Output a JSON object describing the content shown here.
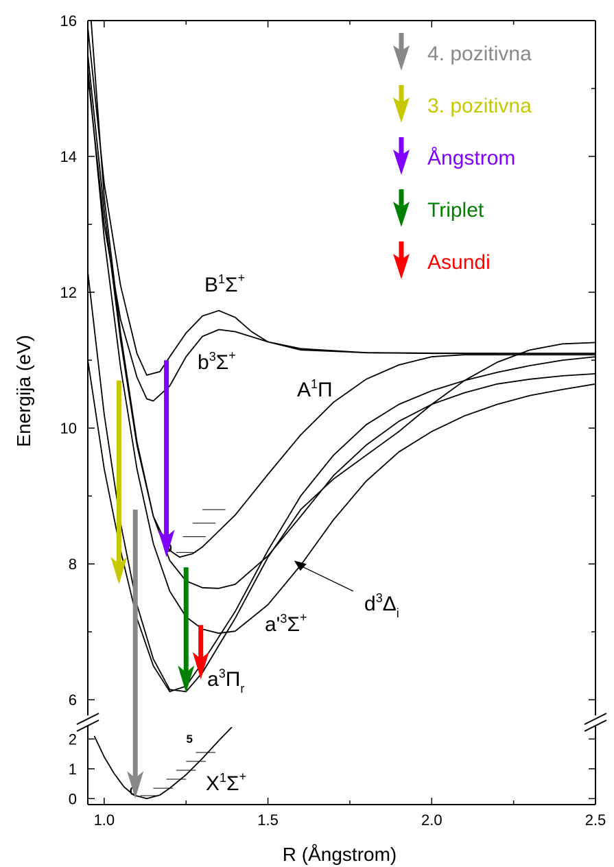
{
  "chart_data": {
    "type": "line",
    "title": "",
    "xlabel": "R (Ångstrom)",
    "ylabel": "Energija (eV)",
    "xlim": [
      0.95,
      2.5
    ],
    "ylim_upper_panel": [
      5.8,
      16
    ],
    "ylim_lower_panel": [
      -0.2,
      2.4
    ],
    "axis_break": true,
    "x_ticks": [
      "1.0",
      "1.5",
      "2.0",
      "2.5"
    ],
    "y_ticks_upper": [
      "6",
      "8",
      "10",
      "12",
      "14",
      "16"
    ],
    "y_ticks_lower": [
      "0",
      "1",
      "2"
    ],
    "grid": false,
    "legend_position": "top-right",
    "legend": [
      {
        "label": "4. pozitivna",
        "color": "#888888"
      },
      {
        "label": "3. pozitivna",
        "color": "#c8c800"
      },
      {
        "label": "Ångstrom",
        "color": "#8000ff"
      },
      {
        "label": "Triplet",
        "color": "#008000"
      },
      {
        "label": "Asundi",
        "color": "#ff0000"
      }
    ],
    "states": [
      {
        "label": "B",
        "sup": "1",
        "sym": "Σ",
        "sup2": "+",
        "sub": "",
        "points": [
          [
            0.95,
            15.9
          ],
          [
            1.0,
            13.6
          ],
          [
            1.05,
            12.1
          ],
          [
            1.1,
            11.1
          ],
          [
            1.13,
            10.78
          ],
          [
            1.17,
            10.83
          ],
          [
            1.2,
            11.05
          ],
          [
            1.25,
            11.4
          ],
          [
            1.3,
            11.65
          ],
          [
            1.35,
            11.73
          ],
          [
            1.4,
            11.63
          ],
          [
            1.45,
            11.42
          ],
          [
            1.5,
            11.27
          ],
          [
            1.6,
            11.15
          ],
          [
            1.8,
            11.11
          ],
          [
            2.1,
            11.1
          ],
          [
            2.5,
            11.1
          ]
        ]
      },
      {
        "label": "b",
        "sup": "3",
        "sym": "Σ",
        "sup2": "+",
        "sub": "",
        "points": [
          [
            0.95,
            15.2
          ],
          [
            1.0,
            13.0
          ],
          [
            1.05,
            11.6
          ],
          [
            1.1,
            10.75
          ],
          [
            1.13,
            10.43
          ],
          [
            1.15,
            10.4
          ],
          [
            1.2,
            10.62
          ],
          [
            1.25,
            11.05
          ],
          [
            1.3,
            11.35
          ],
          [
            1.35,
            11.45
          ],
          [
            1.4,
            11.42
          ],
          [
            1.5,
            11.27
          ],
          [
            1.6,
            11.17
          ],
          [
            1.8,
            11.11
          ],
          [
            2.0,
            11.1
          ],
          [
            2.2,
            11.1
          ]
        ]
      },
      {
        "label": "A",
        "sup": "1",
        "sym": "Π",
        "sup2": "",
        "sub": "",
        "points": [
          [
            0.96,
            16.0
          ],
          [
            1.0,
            13.4
          ],
          [
            1.05,
            11.4
          ],
          [
            1.1,
            9.8
          ],
          [
            1.15,
            8.7
          ],
          [
            1.2,
            8.2
          ],
          [
            1.23,
            8.1
          ],
          [
            1.27,
            8.15
          ],
          [
            1.3,
            8.25
          ],
          [
            1.4,
            8.72
          ],
          [
            1.5,
            9.32
          ],
          [
            1.6,
            9.9
          ],
          [
            1.7,
            10.38
          ],
          [
            1.8,
            10.72
          ],
          [
            1.9,
            10.93
          ],
          [
            2.0,
            11.05
          ],
          [
            2.1,
            11.08
          ],
          [
            2.5,
            11.08
          ]
        ]
      },
      {
        "label": "d",
        "sup": "3",
        "sym": "Δ",
        "sup2": "",
        "sub": "i",
        "points": [
          [
            0.95,
            15.5
          ],
          [
            1.0,
            13.2
          ],
          [
            1.05,
            11.3
          ],
          [
            1.1,
            9.75
          ],
          [
            1.15,
            8.7
          ],
          [
            1.2,
            8.05
          ],
          [
            1.25,
            7.75
          ],
          [
            1.3,
            7.65
          ],
          [
            1.35,
            7.64
          ],
          [
            1.4,
            7.7
          ],
          [
            1.5,
            8.12
          ],
          [
            1.6,
            8.7
          ],
          [
            1.7,
            9.3
          ],
          [
            1.8,
            9.75
          ],
          [
            1.9,
            10.1
          ],
          [
            2.0,
            10.35
          ],
          [
            2.1,
            10.52
          ],
          [
            2.2,
            10.65
          ],
          [
            2.3,
            10.72
          ],
          [
            2.4,
            10.77
          ],
          [
            2.5,
            10.8
          ]
        ]
      },
      {
        "label": "a'",
        "sup": "3",
        "sym": "Σ",
        "sup2": "+",
        "sub": "",
        "points": [
          [
            0.95,
            15.3
          ],
          [
            1.0,
            12.8
          ],
          [
            1.05,
            10.9
          ],
          [
            1.1,
            9.4
          ],
          [
            1.15,
            8.3
          ],
          [
            1.2,
            7.6
          ],
          [
            1.25,
            7.22
          ],
          [
            1.3,
            7.04
          ],
          [
            1.35,
            6.98
          ],
          [
            1.4,
            7.01
          ],
          [
            1.5,
            7.4
          ],
          [
            1.6,
            7.98
          ],
          [
            1.7,
            8.65
          ],
          [
            1.8,
            9.22
          ],
          [
            1.9,
            9.65
          ],
          [
            2.0,
            9.95
          ],
          [
            2.1,
            10.18
          ],
          [
            2.2,
            10.35
          ],
          [
            2.3,
            10.48
          ],
          [
            2.4,
            10.57
          ],
          [
            2.5,
            10.65
          ]
        ]
      },
      {
        "label": "a",
        "sup": "3",
        "sym": "Π",
        "sup2": "r",
        "sub": "",
        "points": [
          [
            0.95,
            12.3
          ],
          [
            1.0,
            10.2
          ],
          [
            1.05,
            8.6
          ],
          [
            1.1,
            7.4
          ],
          [
            1.15,
            6.6
          ],
          [
            1.2,
            6.15
          ],
          [
            1.25,
            6.12
          ],
          [
            1.3,
            6.4
          ],
          [
            1.4,
            7.2
          ],
          [
            1.5,
            8.1
          ],
          [
            1.6,
            8.8
          ],
          [
            1.7,
            9.25
          ],
          [
            1.8,
            9.6
          ],
          [
            1.9,
            9.95
          ],
          [
            2.0,
            10.35
          ],
          [
            2.1,
            10.7
          ],
          [
            2.2,
            10.97
          ],
          [
            2.3,
            11.15
          ],
          [
            2.4,
            11.24
          ],
          [
            2.5,
            11.26
          ]
        ]
      },
      {
        "label": "a_low",
        "sup": "",
        "sym": "",
        "sup2": "",
        "sub": "",
        "points": [
          [
            0.95,
            11.0
          ],
          [
            1.0,
            9.4
          ],
          [
            1.05,
            8.2
          ],
          [
            1.1,
            7.2
          ],
          [
            1.15,
            6.5
          ],
          [
            1.2,
            6.12
          ],
          [
            1.25,
            6.2
          ],
          [
            1.3,
            6.55
          ],
          [
            1.4,
            7.3
          ],
          [
            1.5,
            8.2
          ],
          [
            1.6,
            9.0
          ],
          [
            1.7,
            9.6
          ],
          [
            1.8,
            10.05
          ],
          [
            1.9,
            10.35
          ],
          [
            2.0,
            10.55
          ],
          [
            2.1,
            10.7
          ],
          [
            2.2,
            10.82
          ],
          [
            2.3,
            10.92
          ],
          [
            2.4,
            11.0
          ],
          [
            2.5,
            11.05
          ]
        ]
      },
      {
        "label": "X",
        "sup": "1",
        "sym": "Σ",
        "sup2": "+",
        "sub": "",
        "points": [
          [
            0.97,
            2.1
          ],
          [
            1.0,
            1.4
          ],
          [
            1.03,
            0.85
          ],
          [
            1.06,
            0.4
          ],
          [
            1.09,
            0.12
          ],
          [
            1.13,
            0.0
          ],
          [
            1.17,
            0.12
          ],
          [
            1.2,
            0.35
          ],
          [
            1.25,
            0.8
          ],
          [
            1.3,
            1.35
          ],
          [
            1.35,
            1.95
          ],
          [
            1.39,
            2.4
          ]
        ]
      }
    ],
    "transitions": [
      {
        "name": "4. pozitivna",
        "color": "#888888",
        "x": 1.095,
        "y_from": 8.8,
        "y_to": 0.0,
        "from_panel": "upper",
        "to_panel": "lower"
      },
      {
        "name": "3. pozitivna",
        "color": "#c8c800",
        "x": 1.045,
        "y_from": 10.7,
        "y_to": 7.7,
        "from_panel": "upper",
        "to_panel": "upper"
      },
      {
        "name": "Ångstrom",
        "color": "#8000ff",
        "x": 1.19,
        "y_from": 11.0,
        "y_to": 8.1,
        "from_panel": "upper",
        "to_panel": "upper"
      },
      {
        "name": "Triplet",
        "color": "#008000",
        "x": 1.25,
        "y_from": 7.95,
        "y_to": 6.1,
        "from_panel": "upper",
        "to_panel": "upper"
      },
      {
        "name": "Asundi",
        "color": "#ff0000",
        "x": 1.295,
        "y_from": 7.1,
        "y_to": 6.3,
        "from_panel": "upper",
        "to_panel": "upper"
      }
    ],
    "vibrational_levels": [
      {
        "state": "A",
        "label": "0",
        "panel": "upper",
        "levels": [
          [
            1.22,
            1.28,
            8.17
          ],
          [
            1.24,
            1.31,
            8.4
          ],
          [
            1.27,
            1.34,
            8.6
          ],
          [
            1.3,
            1.37,
            8.8
          ]
        ]
      },
      {
        "state": "X",
        "label": "0",
        "top_label": "5",
        "panel": "lower",
        "levels": [
          [
            1.11,
            1.16,
            0.1
          ],
          [
            1.15,
            1.21,
            0.35
          ],
          [
            1.19,
            1.25,
            0.65
          ],
          [
            1.22,
            1.28,
            0.95
          ],
          [
            1.25,
            1.31,
            1.25
          ],
          [
            1.28,
            1.34,
            1.55
          ]
        ]
      }
    ],
    "annotations": [
      {
        "text": "d",
        "sup": "3",
        "sym": "Δ",
        "sub": "i",
        "arrow_from": [
          1.76,
          7.6
        ],
        "arrow_to": [
          1.58,
          8.05
        ]
      }
    ]
  }
}
